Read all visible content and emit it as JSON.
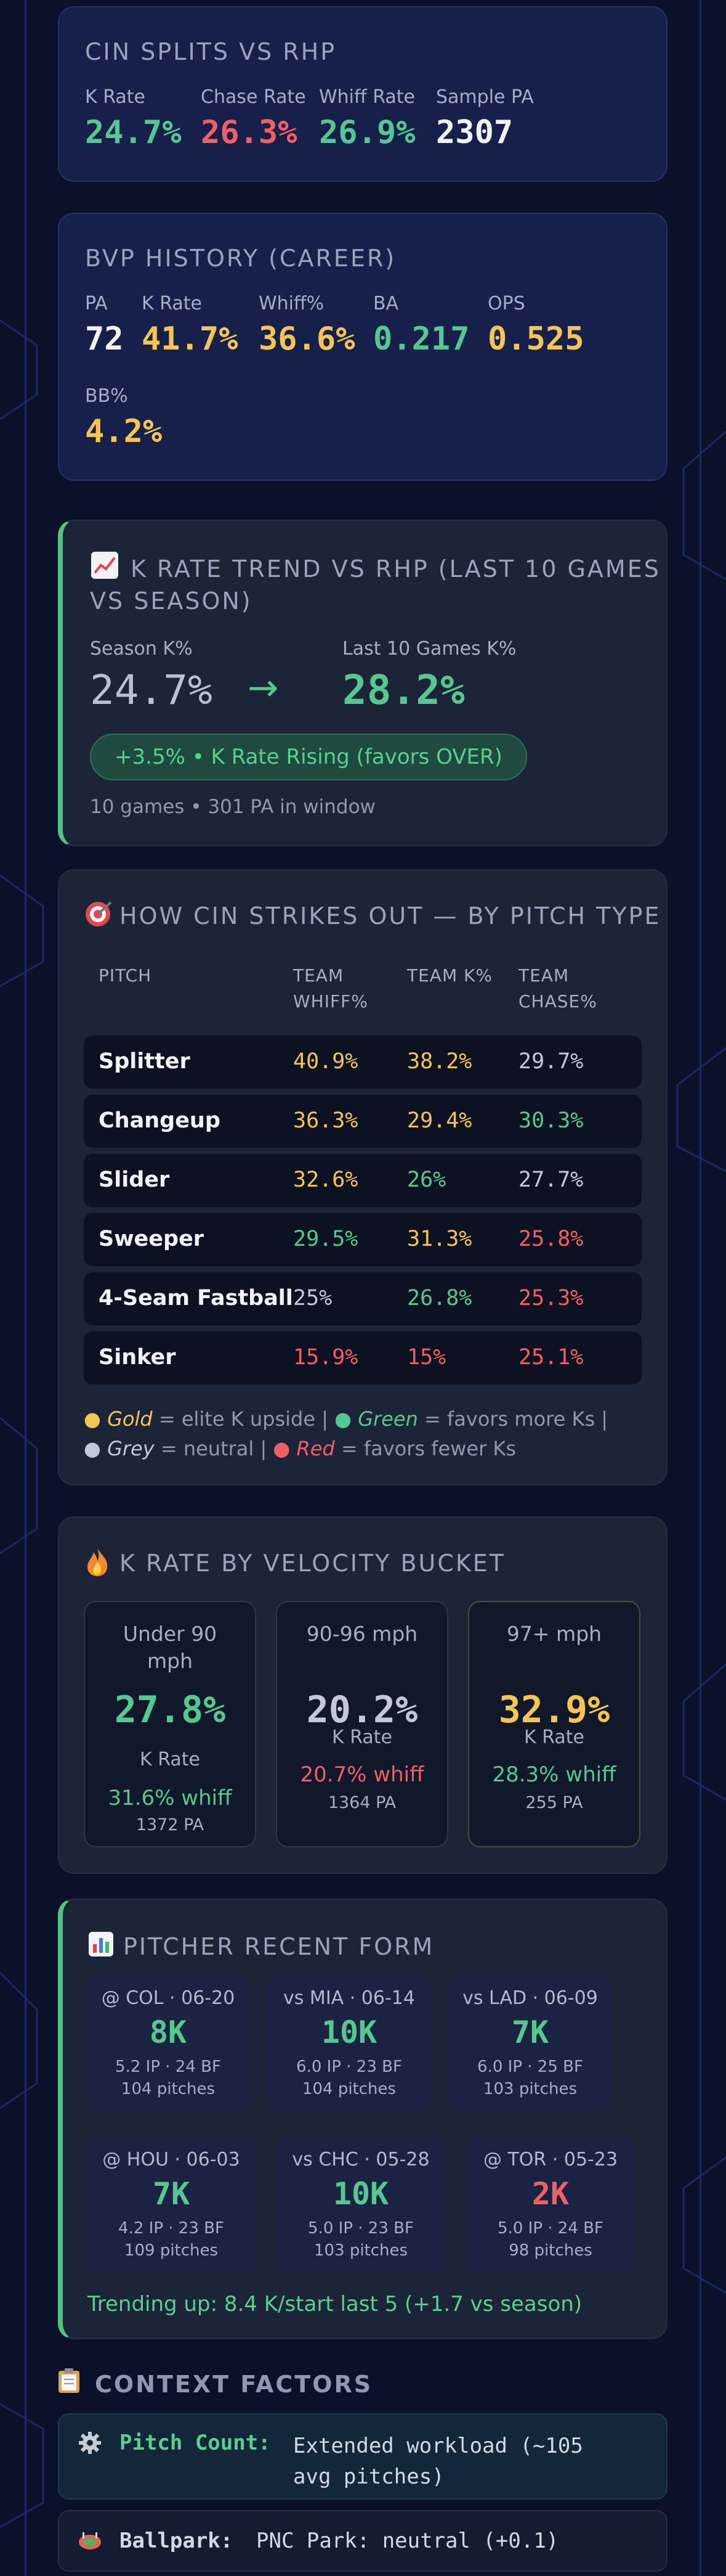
{
  "colors": {
    "background": "#0b1129",
    "gold": "#f5c553",
    "green": "#54c890",
    "red": "#ef5f65",
    "accent": "#52c480"
  },
  "splits": {
    "title": "CIN SPLITS VS RHP",
    "stats": [
      {
        "label": "K Rate",
        "value": "24.7%",
        "color": "green"
      },
      {
        "label": "Chase Rate",
        "value": "26.3%",
        "color": "red"
      },
      {
        "label": "Whiff Rate",
        "value": "26.9%",
        "color": "green"
      },
      {
        "label": "Sample PA",
        "value": "2307",
        "color": "white"
      }
    ]
  },
  "bvp": {
    "title": "BVP HISTORY (CAREER)",
    "stats": [
      {
        "label": "PA",
        "value": "72",
        "color": "white"
      },
      {
        "label": "K Rate",
        "value": "41.7%",
        "color": "gold"
      },
      {
        "label": "Whiff%",
        "value": "36.6%",
        "color": "gold"
      },
      {
        "label": "BA",
        "value": "0.217",
        "color": "green"
      },
      {
        "label": "OPS",
        "value": "0.525",
        "color": "gold"
      },
      {
        "label": "BB%",
        "value": "4.2%",
        "color": "gold"
      }
    ]
  },
  "trend": {
    "icon": "chart-trend-icon",
    "title_line1": "K RATE TREND VS RHP (LAST 10 GAMES",
    "title_line2": "VS SEASON)",
    "season_label": "Season K%",
    "season_value": "24.7%",
    "arrow": "→",
    "last_label": "Last 10 Games K%",
    "last_value": "28.2%",
    "badge": "+3.5% • K Rate Rising (favors OVER)",
    "footer": "10 games • 301 PA in window"
  },
  "pitch_type": {
    "icon": "target-icon",
    "title": "HOW CIN STRIKES OUT — BY PITCH TYPE",
    "headers": [
      "PITCH",
      "TEAM\nWHIFF%",
      "TEAM K%",
      "TEAM\nCHASE%"
    ],
    "header_lines": {
      "pitch": "PITCH",
      "whiff_1": "TEAM",
      "whiff_2": "WHIFF%",
      "k": "TEAM K%",
      "chase_1": "TEAM",
      "chase_2": "CHASE%"
    },
    "rows": [
      {
        "pitch": "Splitter",
        "whiff": "40.9%",
        "whiff_c": "gold",
        "k": "38.2%",
        "k_c": "gold",
        "chase": "29.7%",
        "chase_c": "grey"
      },
      {
        "pitch": "Changeup",
        "whiff": "36.3%",
        "whiff_c": "gold",
        "k": "29.4%",
        "k_c": "gold",
        "chase": "30.3%",
        "chase_c": "green"
      },
      {
        "pitch": "Slider",
        "whiff": "32.6%",
        "whiff_c": "gold",
        "k": "26%",
        "k_c": "green",
        "chase": "27.7%",
        "chase_c": "grey"
      },
      {
        "pitch": "Sweeper",
        "whiff": "29.5%",
        "whiff_c": "green",
        "k": "31.3%",
        "k_c": "gold",
        "chase": "25.8%",
        "chase_c": "red"
      },
      {
        "pitch": "4-Seam Fastball",
        "whiff": "25%",
        "whiff_c": "grey",
        "k": "26.8%",
        "k_c": "green",
        "chase": "25.3%",
        "chase_c": "red"
      },
      {
        "pitch": "Sinker",
        "whiff": "15.9%",
        "whiff_c": "red",
        "k": "15%",
        "k_c": "red",
        "chase": "25.1%",
        "chase_c": "red"
      }
    ],
    "legend": {
      "gold_word": "Gold",
      "gold_text": " = elite K upside  |  ",
      "green_word": "Green",
      "green_text": " = favors more Ks  |",
      "grey_word": "Grey",
      "grey_text": " = neutral  |  ",
      "red_word": "Red",
      "red_text": " = favors fewer Ks"
    }
  },
  "velocity": {
    "icon": "fire-icon",
    "title": "K RATE BY VELOCITY BUCKET",
    "buckets": [
      {
        "label": "Under 90 mph",
        "value": "27.8%",
        "color": "green",
        "k": "K Rate",
        "whiff": "31.6% whiff",
        "whiff_color": "green",
        "pa": "1372 PA"
      },
      {
        "label": "90-96 mph",
        "value": "20.2%",
        "color": "grey",
        "k": "K Rate",
        "whiff": "20.7% whiff",
        "whiff_color": "red",
        "pa": "1364 PA"
      },
      {
        "label": "97+ mph",
        "value": "32.9%",
        "color": "gold",
        "k": "K Rate",
        "whiff": "28.3% whiff",
        "whiff_color": "green",
        "pa": "255 PA"
      }
    ]
  },
  "recent_form": {
    "icon": "bar-chart-icon",
    "title": "PITCHER RECENT FORM",
    "games": [
      {
        "opp": "@ COL · 06-20",
        "ks": "8K",
        "color": "green",
        "ipbf": "5.2 IP · 24 BF",
        "pitches": "104 pitches"
      },
      {
        "opp": "vs MIA · 06-14",
        "ks": "10K",
        "color": "green",
        "ipbf": "6.0 IP · 23 BF",
        "pitches": "104 pitches"
      },
      {
        "opp": "vs LAD · 06-09",
        "ks": "7K",
        "color": "green",
        "ipbf": "6.0 IP · 25 BF",
        "pitches": "103 pitches"
      },
      {
        "opp": "@ HOU · 06-03",
        "ks": "7K",
        "color": "green",
        "ipbf": "4.2 IP · 23 BF",
        "pitches": "109 pitches"
      },
      {
        "opp": "vs CHC · 05-28",
        "ks": "10K",
        "color": "green",
        "ipbf": "5.0 IP · 23 BF",
        "pitches": "103 pitches"
      },
      {
        "opp": "@ TOR · 05-23",
        "ks": "2K",
        "color": "red",
        "ipbf": "5.0 IP · 24 BF",
        "pitches": "98 pitches"
      }
    ],
    "trend_text": "Trending up: 8.4 K/start last 5 (+1.7 vs season)"
  },
  "context": {
    "icon": "clipboard-icon",
    "title": "CONTEXT FACTORS",
    "items": [
      {
        "icon": "gear-icon",
        "label": "Pitch Count:",
        "value_1": "Extended workload (~105",
        "value_2": "avg pitches)"
      },
      {
        "icon": "stadium-icon",
        "label": "Ballpark:",
        "value_1": "PNC Park: neutral (+0.1)"
      }
    ]
  }
}
